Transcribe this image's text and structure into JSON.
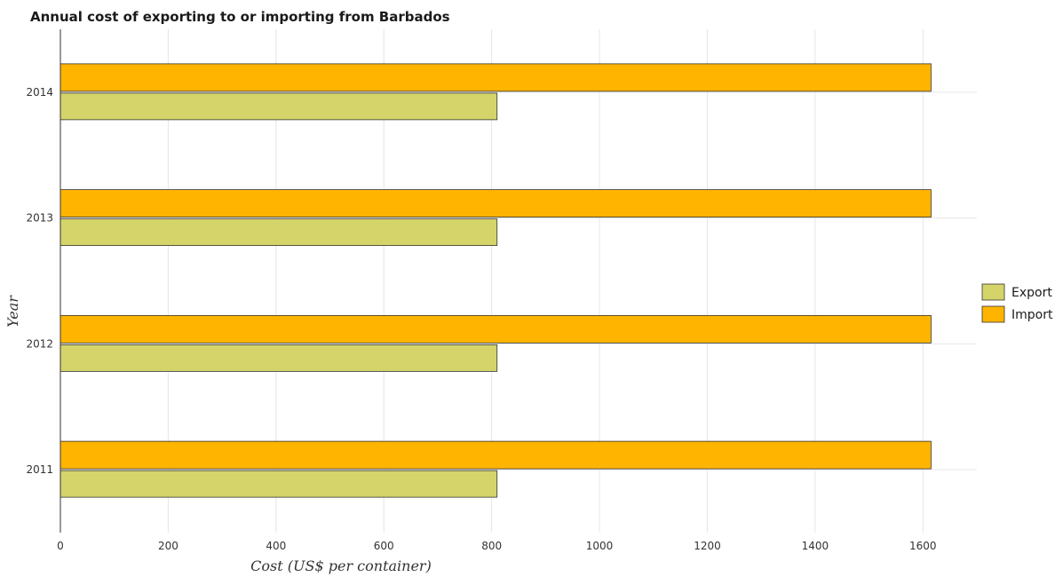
{
  "chart_data": {
    "type": "bar",
    "orientation": "horizontal",
    "title": "Annual cost of exporting to or importing from Barbados",
    "xlabel": "Cost (US$ per container)",
    "ylabel": "Year",
    "categories": [
      "2011",
      "2012",
      "2013",
      "2014"
    ],
    "series": [
      {
        "name": "Export",
        "values": [
          810,
          810,
          810,
          810
        ],
        "color": "#d4d46a"
      },
      {
        "name": "Import",
        "values": [
          1615,
          1615,
          1615,
          1615
        ],
        "color": "#ffb400"
      }
    ],
    "xlim": [
      0,
      1700
    ],
    "xticks": [
      0,
      200,
      400,
      600,
      800,
      1000,
      1200,
      1400,
      1600
    ],
    "grid": true,
    "legend_position": "right"
  }
}
